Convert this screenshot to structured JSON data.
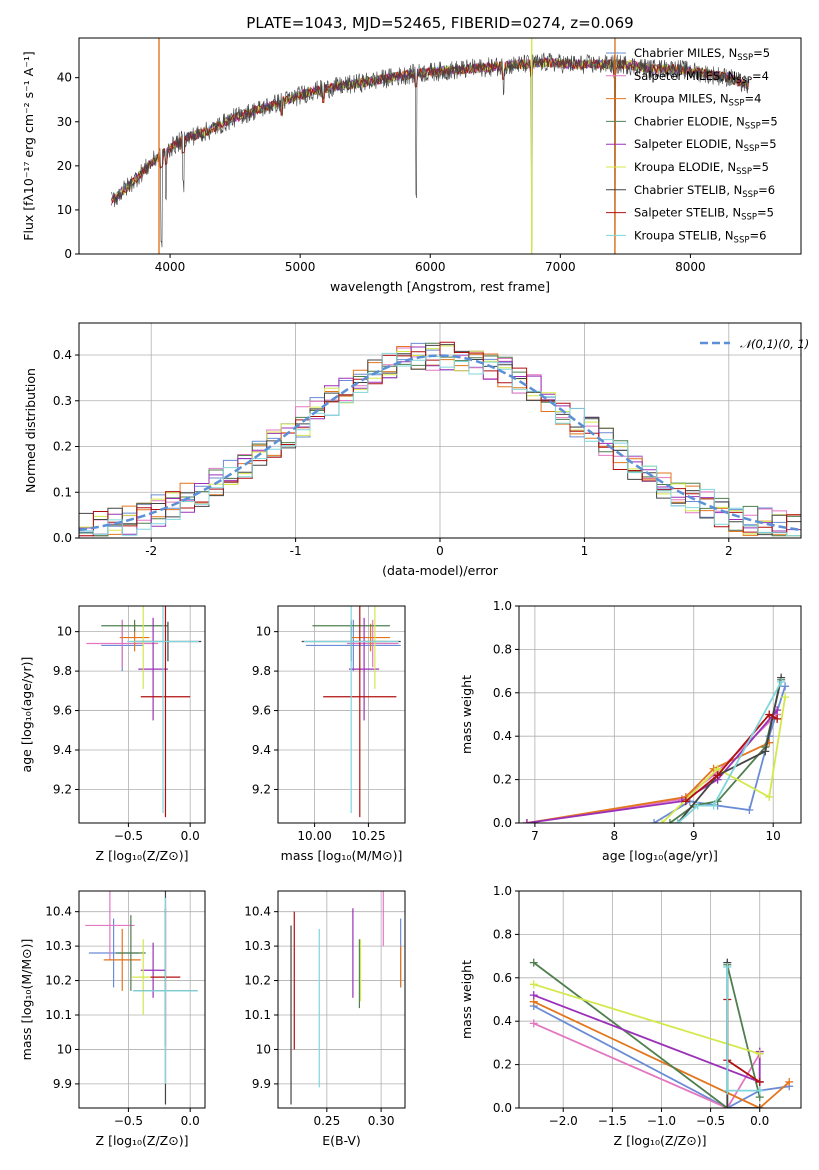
{
  "figure": {
    "title": "PLATE=1043, MJD=52465, FIBERID=0274, z=0.069"
  },
  "models": [
    {
      "name": "Chabrier MILES, N_SSP=5",
      "color": "#6a8bd6"
    },
    {
      "name": "Salpeter MILES, N_SSP=4",
      "color": "#e377c2"
    },
    {
      "name": "Kroupa MILES, N_SSP=4",
      "color": "#e3761d"
    },
    {
      "name": "Chabrier ELODIE, N_SSP=5",
      "color": "#4f7f4f"
    },
    {
      "name": "Salpeter ELODIE, N_SSP=5",
      "color": "#9b30b8"
    },
    {
      "name": "Kroupa ELODIE, N_SSP=5",
      "color": "#d4e84a"
    },
    {
      "name": "Chabrier STELIB, N_SSP=6",
      "color": "#444444"
    },
    {
      "name": "Salpeter STELIB, N_SSP=5",
      "color": "#b01010"
    },
    {
      "name": "Kroupa STELIB, N_SSP=6",
      "color": "#7fd6dc"
    }
  ],
  "legend_spectrum": [
    {
      "base": "Chabrier MILES, N",
      "sub": "SSP",
      "tail": "=5"
    },
    {
      "base": "Salpeter MILES, N",
      "sub": "SSP",
      "tail": "=4"
    },
    {
      "base": "Kroupa MILES, N",
      "sub": "SSP",
      "tail": "=4"
    },
    {
      "base": "Chabrier ELODIE, N",
      "sub": "SSP",
      "tail": "=5"
    },
    {
      "base": "Salpeter ELODIE, N",
      "sub": "SSP",
      "tail": "=5"
    },
    {
      "base": "Kroupa ELODIE, N",
      "sub": "SSP",
      "tail": "=5"
    },
    {
      "base": "Chabrier STELIB, N",
      "sub": "SSP",
      "tail": "=6"
    },
    {
      "base": "Salpeter STELIB, N",
      "sub": "SSP",
      "tail": "=5"
    },
    {
      "base": "Kroupa STELIB, N",
      "sub": "SSP",
      "tail": "=6"
    }
  ],
  "chart_data": [
    {
      "id": "spectrum",
      "type": "line",
      "xlabel": "wavelength [Angstrom, rest frame]",
      "ylabel": "Flux [fλ10⁻¹⁷ erg cm⁻² s⁻¹ A⁻¹]",
      "xlim": [
        3300,
        8850
      ],
      "ylim": [
        0,
        49
      ],
      "xticks": [
        4000,
        5000,
        6000,
        7000,
        8000
      ],
      "yticks": [
        0,
        10,
        20,
        30,
        40
      ],
      "continuum": {
        "x": [
          3550,
          3700,
          3900,
          4100,
          4300,
          4500,
          4700,
          4900,
          5100,
          5300,
          5500,
          5700,
          5900,
          6100,
          6300,
          6500,
          6700,
          6900,
          7100,
          7300,
          7500,
          7700,
          7900,
          8100,
          8300,
          8450
        ],
        "y": [
          12,
          16,
          22,
          26,
          28,
          31,
          33,
          35,
          37,
          38,
          39,
          40,
          41,
          41.5,
          42,
          42.5,
          43,
          43.5,
          43,
          43,
          43,
          42,
          42,
          41,
          40,
          38
        ]
      },
      "absorption_lines": [
        {
          "x": 3934,
          "y": 0
        },
        {
          "x": 3968,
          "y": 10
        },
        {
          "x": 4102,
          "y": 14
        },
        {
          "x": 4861,
          "y": 30
        },
        {
          "x": 5175,
          "y": 33
        },
        {
          "x": 5893,
          "y": 12
        },
        {
          "x": 6563,
          "y": 36
        },
        {
          "x": 6780,
          "y": 0
        },
        {
          "x": 7420,
          "y": 0
        }
      ],
      "grid": false,
      "legend": "right"
    },
    {
      "id": "residuals",
      "type": "histogram",
      "xlabel": "(data-model)/error",
      "ylabel": "Normed distribution",
      "xlim": [
        -2.5,
        2.5
      ],
      "ylim": [
        0,
        0.47
      ],
      "xticks": [
        -2,
        -1,
        0,
        1,
        2
      ],
      "yticks": [
        0.0,
        0.1,
        0.2,
        0.3,
        0.4
      ],
      "bin_width": 0.1,
      "reference": {
        "name": "𝒩(0,1)",
        "mu": 0,
        "sigma": 1
      },
      "grid": true,
      "legend": "top-right"
    },
    {
      "id": "age_vs_Z",
      "type": "scatter",
      "xlabel": "Z [log₁₀(Z/Z⊙)]",
      "ylabel": "age  [log₁₀(age/yr)]",
      "xlim": [
        -0.9,
        0.12
      ],
      "ylim": [
        9.03,
        10.13
      ],
      "xticks": [
        -0.5,
        0.0
      ],
      "xticklabels": [
        "−0.5",
        "0.0"
      ],
      "yticks": [
        9.2,
        9.4,
        9.6,
        9.8,
        10.0
      ],
      "points": [
        {
          "x": -0.55,
          "y": 9.93,
          "xerr": 0.17,
          "yerr": 0.13
        },
        {
          "x": -0.55,
          "y": 9.94,
          "xerr": 0.29,
          "yerr": 0.12
        },
        {
          "x": -0.45,
          "y": 9.97,
          "xerr": 0.12,
          "yerr": 0.07
        },
        {
          "x": -0.45,
          "y": 10.03,
          "xerr": 0.27,
          "yerr": 0.03
        },
        {
          "x": -0.3,
          "y": 9.81,
          "xerr": 0.12,
          "yerr": 0.26
        },
        {
          "x": -0.38,
          "y": 9.95,
          "xerr": 0.1,
          "yerr": 0.24
        },
        {
          "x": -0.18,
          "y": 9.95,
          "xerr": 0.27,
          "yerr": 0.1
        },
        {
          "x": -0.2,
          "y": 9.67,
          "xerr": 0.2,
          "yerr": 0.61
        },
        {
          "x": -0.22,
          "y": 9.95,
          "xerr": 0.29,
          "yerr": 0.87
        }
      ],
      "grid": true
    },
    {
      "id": "age_vs_mass",
      "type": "scatter",
      "xlabel": "mass [log₁₀(M/M⊙)]",
      "ylabel": "",
      "xlim": [
        9.83,
        10.42
      ],
      "ylim": [
        9.03,
        10.13
      ],
      "xticks": [
        10.0,
        10.25
      ],
      "xticklabels": [
        "10.00",
        "10.25"
      ],
      "yticks": [
        9.2,
        9.4,
        9.6,
        9.8,
        10.0
      ],
      "points": [
        {
          "x": 10.18,
          "y": 9.93,
          "xerr": 0.22,
          "yerr": 0.13
        },
        {
          "x": 10.27,
          "y": 9.94,
          "xerr": 0.12,
          "yerr": 0.12
        },
        {
          "x": 10.26,
          "y": 9.97,
          "xerr": 0.09,
          "yerr": 0.07
        },
        {
          "x": 10.17,
          "y": 10.03,
          "xerr": 0.18,
          "yerr": 0.03
        },
        {
          "x": 10.23,
          "y": 9.81,
          "xerr": 0.07,
          "yerr": 0.26
        },
        {
          "x": 10.28,
          "y": 9.95,
          "xerr": 0.05,
          "yerr": 0.24
        },
        {
          "x": 10.17,
          "y": 9.95,
          "xerr": 0.23,
          "yerr": 0.1
        },
        {
          "x": 10.21,
          "y": 9.67,
          "xerr": 0.17,
          "yerr": 0.61
        },
        {
          "x": 10.17,
          "y": 9.95,
          "xerr": 0.22,
          "yerr": 0.87
        }
      ],
      "grid": true
    },
    {
      "id": "weight_vs_age",
      "type": "line",
      "xlabel": "age  [log₁₀(age/yr)]",
      "ylabel": "mass weight",
      "xlim": [
        6.8,
        10.35
      ],
      "ylim": [
        0,
        1
      ],
      "xticks": [
        7,
        8,
        9,
        10
      ],
      "yticks": [
        0.0,
        0.2,
        0.4,
        0.6,
        0.8,
        1.0
      ],
      "series": [
        {
          "x": [
            8.5,
            8.95,
            9.3,
            9.7,
            9.95,
            10.15
          ],
          "y": [
            0.0,
            0.1,
            0.08,
            0.06,
            0.4,
            0.63
          ]
        },
        {
          "x": [
            6.9,
            8.85,
            9.25,
            10.05
          ],
          "y": [
            0.0,
            0.11,
            0.22,
            0.5
          ]
        },
        {
          "x": [
            6.9,
            8.9,
            9.25,
            9.95
          ],
          "y": [
            0.0,
            0.12,
            0.25,
            0.37
          ]
        },
        {
          "x": [
            8.7,
            9.0,
            9.3,
            9.9,
            10.1
          ],
          "y": [
            0.0,
            0.08,
            0.1,
            0.35,
            0.66
          ]
        },
        {
          "x": [
            6.9,
            8.85,
            9.3,
            10.05
          ],
          "y": [
            0.0,
            0.1,
            0.2,
            0.52
          ]
        },
        {
          "x": [
            8.6,
            9.3,
            9.95,
            10.15
          ],
          "y": [
            0.0,
            0.25,
            0.12,
            0.58
          ]
        },
        {
          "x": [
            8.8,
            9.3,
            9.9,
            10.1
          ],
          "y": [
            0.0,
            0.22,
            0.33,
            0.67
          ]
        },
        {
          "x": [
            8.9,
            9.3,
            9.95,
            10.05
          ],
          "y": [
            0.1,
            0.22,
            0.5,
            0.48
          ]
        },
        {
          "x": [
            8.8,
            9.05,
            9.25,
            10.1
          ],
          "y": [
            0.0,
            0.08,
            0.08,
            0.65
          ]
        }
      ],
      "grid": true
    },
    {
      "id": "mass_vs_Z",
      "type": "scatter",
      "xlabel": "Z [log₁₀(Z/Z⊙)]",
      "ylabel": "mass [log₁₀(M/M⊙)]",
      "xlim": [
        -0.9,
        0.12
      ],
      "ylim": [
        9.83,
        10.46
      ],
      "xticks": [
        -0.5,
        0.0
      ],
      "xticklabels": [
        "−0.5",
        "0.0"
      ],
      "yticks": [
        9.9,
        10.0,
        10.1,
        10.2,
        10.3,
        10.4
      ],
      "points": [
        {
          "x": -0.62,
          "y": 10.28,
          "xerr": 0.2,
          "yerr": 0.1
        },
        {
          "x": -0.65,
          "y": 10.36,
          "xerr": 0.2,
          "yerr": 0.1
        },
        {
          "x": -0.55,
          "y": 10.26,
          "xerr": 0.15,
          "yerr": 0.09
        },
        {
          "x": -0.48,
          "y": 10.28,
          "xerr": 0.12,
          "yerr": 0.11
        },
        {
          "x": -0.3,
          "y": 10.23,
          "xerr": 0.1,
          "yerr": 0.08
        },
        {
          "x": -0.38,
          "y": 10.21,
          "xerr": 0.09,
          "yerr": 0.11
        },
        {
          "x": -0.2,
          "y": 10.17,
          "xerr": 0.26,
          "yerr": 0.33
        },
        {
          "x": -0.2,
          "y": 10.21,
          "xerr": 0.12,
          "yerr": 0.2
        },
        {
          "x": -0.2,
          "y": 10.17,
          "xerr": 0.26,
          "yerr": 0.27
        }
      ],
      "grid": true
    },
    {
      "id": "mass_vs_ebv",
      "type": "scatter",
      "xlabel": "E(B-V)",
      "ylabel": "",
      "xlim": [
        0.205,
        0.322
      ],
      "ylim": [
        9.83,
        10.46
      ],
      "xticks": [
        0.25,
        0.3
      ],
      "xticklabels": [
        "0.25",
        "0.30"
      ],
      "yticks": [
        9.9,
        10.0,
        10.1,
        10.2,
        10.3,
        10.4
      ],
      "points": [
        {
          "x": 0.318,
          "y": 10.28,
          "yerr": 0.1
        },
        {
          "x": 0.302,
          "y": 10.38,
          "yerr": 0.08
        },
        {
          "x": 0.318,
          "y": 10.24,
          "yerr": 0.06
        },
        {
          "x": 0.28,
          "y": 10.22,
          "yerr": 0.1
        },
        {
          "x": 0.274,
          "y": 10.28,
          "yerr": 0.13
        },
        {
          "x": 0.281,
          "y": 10.23,
          "yerr": 0.09
        },
        {
          "x": 0.217,
          "y": 10.1,
          "yerr": 0.26
        },
        {
          "x": 0.22,
          "y": 10.2,
          "yerr": 0.2
        },
        {
          "x": 0.243,
          "y": 10.12,
          "yerr": 0.23
        }
      ],
      "grid": true
    },
    {
      "id": "weight_vs_Z",
      "type": "line",
      "xlabel": "Z [log₁₀(Z/Z⊙)]",
      "ylabel": "mass weight",
      "xlim": [
        -2.45,
        0.42
      ],
      "ylim": [
        0,
        1
      ],
      "xticks": [
        -2.0,
        -1.5,
        -1.0,
        -0.5,
        0.0
      ],
      "xticklabels": [
        "−2.0",
        "−1.5",
        "−1.0",
        "−0.5",
        "0.0"
      ],
      "yticks": [
        0.0,
        0.2,
        0.4,
        0.6,
        0.8,
        1.0
      ],
      "series": [
        {
          "x": [
            -2.3,
            -0.33,
            0.0,
            0.3
          ],
          "y": [
            0.47,
            0.0,
            0.08,
            0.1
          ]
        },
        {
          "x": [
            -2.3,
            -0.33,
            0.0
          ],
          "y": [
            0.39,
            0.0,
            0.25
          ]
        },
        {
          "x": [
            -2.3,
            0.0,
            0.3
          ],
          "y": [
            0.49,
            0.0,
            0.12
          ]
        },
        {
          "x": [
            -2.3,
            -0.33,
            -0.33,
            0.0
          ],
          "y": [
            0.67,
            0.0,
            0.66,
            0.05
          ]
        },
        {
          "x": [
            -2.3,
            0.0,
            0.0
          ],
          "y": [
            0.52,
            0.12,
            0.26
          ]
        },
        {
          "x": [
            -2.3,
            0.0
          ],
          "y": [
            0.57,
            0.25
          ]
        },
        {
          "x": [
            -0.33,
            -0.33,
            0.0
          ],
          "y": [
            0.67,
            0.0,
            0.0
          ]
        },
        {
          "x": [
            -0.33,
            -0.33,
            0.0
          ],
          "y": [
            0.5,
            0.22,
            0.12
          ]
        },
        {
          "x": [
            -0.33,
            -0.33,
            0.0
          ],
          "y": [
            0.65,
            0.08,
            0.08
          ]
        }
      ],
      "grid": true
    }
  ]
}
